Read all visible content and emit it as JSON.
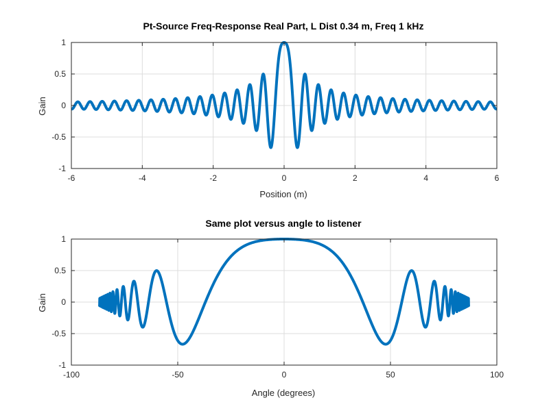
{
  "chart_data": [
    {
      "type": "line",
      "title": "Pt-Source Freq-Response Real Part, L Dist 0.34 m, Freq 1 kHz",
      "xlabel": "Position (m)",
      "ylabel": "Gain",
      "xlim": [
        -6,
        6
      ],
      "ylim": [
        -1,
        1
      ],
      "xticks": [
        -6,
        -4,
        -2,
        0,
        2,
        4,
        6
      ],
      "yticks": [
        -1,
        -0.5,
        0,
        0.5,
        1
      ],
      "xtick_labels": [
        "-6",
        "-4",
        "-2",
        "0",
        "2",
        "4",
        "6"
      ],
      "ytick_labels": [
        "-1",
        "-0.5",
        "0",
        "0.5",
        "1"
      ],
      "grid": true,
      "line_color": "#0072bd",
      "series": [
        {
          "x": [
            -6.0,
            -5.67,
            -5.34,
            -5.01,
            -4.68,
            -4.35,
            -4.02,
            -3.68,
            -3.35,
            -3.02,
            -2.69,
            -2.36,
            -2.03,
            -1.69,
            -1.36,
            -1.03,
            -0.7,
            -0.4,
            0.0,
            0.4,
            0.7,
            1.03,
            1.36,
            1.69,
            2.03,
            2.36,
            2.69,
            3.02,
            3.35,
            3.68,
            4.02,
            4.35,
            4.68,
            5.01,
            5.34,
            5.67,
            6.0
          ],
          "y": [
            0.03,
            0.05,
            0.05,
            0.06,
            0.06,
            0.07,
            0.07,
            0.08,
            0.09,
            0.1,
            0.11,
            0.13,
            0.16,
            0.2,
            0.27,
            0.37,
            0.5,
            -0.68,
            1.0,
            -0.68,
            0.5,
            0.37,
            0.27,
            0.2,
            0.16,
            0.13,
            0.11,
            0.1,
            0.09,
            0.08,
            0.07,
            0.07,
            0.06,
            0.06,
            0.05,
            0.05,
            0.03
          ]
        }
      ]
    },
    {
      "type": "line",
      "title": "Same plot versus angle to listener",
      "xlabel": "Angle (degrees)",
      "ylabel": "Gain",
      "xlim": [
        -100,
        100
      ],
      "ylim": [
        -1,
        1
      ],
      "xticks": [
        -100,
        -50,
        0,
        50,
        100
      ],
      "yticks": [
        -1,
        -0.5,
        0,
        0.5,
        1
      ],
      "xtick_labels": [
        "-100",
        "-50",
        "0",
        "50",
        "100"
      ],
      "ytick_labels": [
        "-1",
        "-0.5",
        "0",
        "0.5",
        "1"
      ],
      "grid": true,
      "line_color": "#0072bd",
      "series": [
        {
          "x": [
            -90,
            -80,
            -75,
            -70,
            -65,
            -60,
            -54,
            -48,
            -40,
            -30,
            -20,
            -10,
            0,
            10,
            20,
            30,
            40,
            48,
            54,
            60,
            65,
            70,
            75,
            80,
            90
          ],
          "y": [
            0.0,
            0.15,
            0.25,
            0.33,
            -0.4,
            0.5,
            -0.3,
            -0.67,
            -0.2,
            0.55,
            0.88,
            0.98,
            1.0,
            0.98,
            0.88,
            0.55,
            -0.2,
            -0.67,
            -0.3,
            0.5,
            -0.4,
            0.33,
            0.25,
            0.15,
            0.0
          ]
        }
      ]
    }
  ]
}
